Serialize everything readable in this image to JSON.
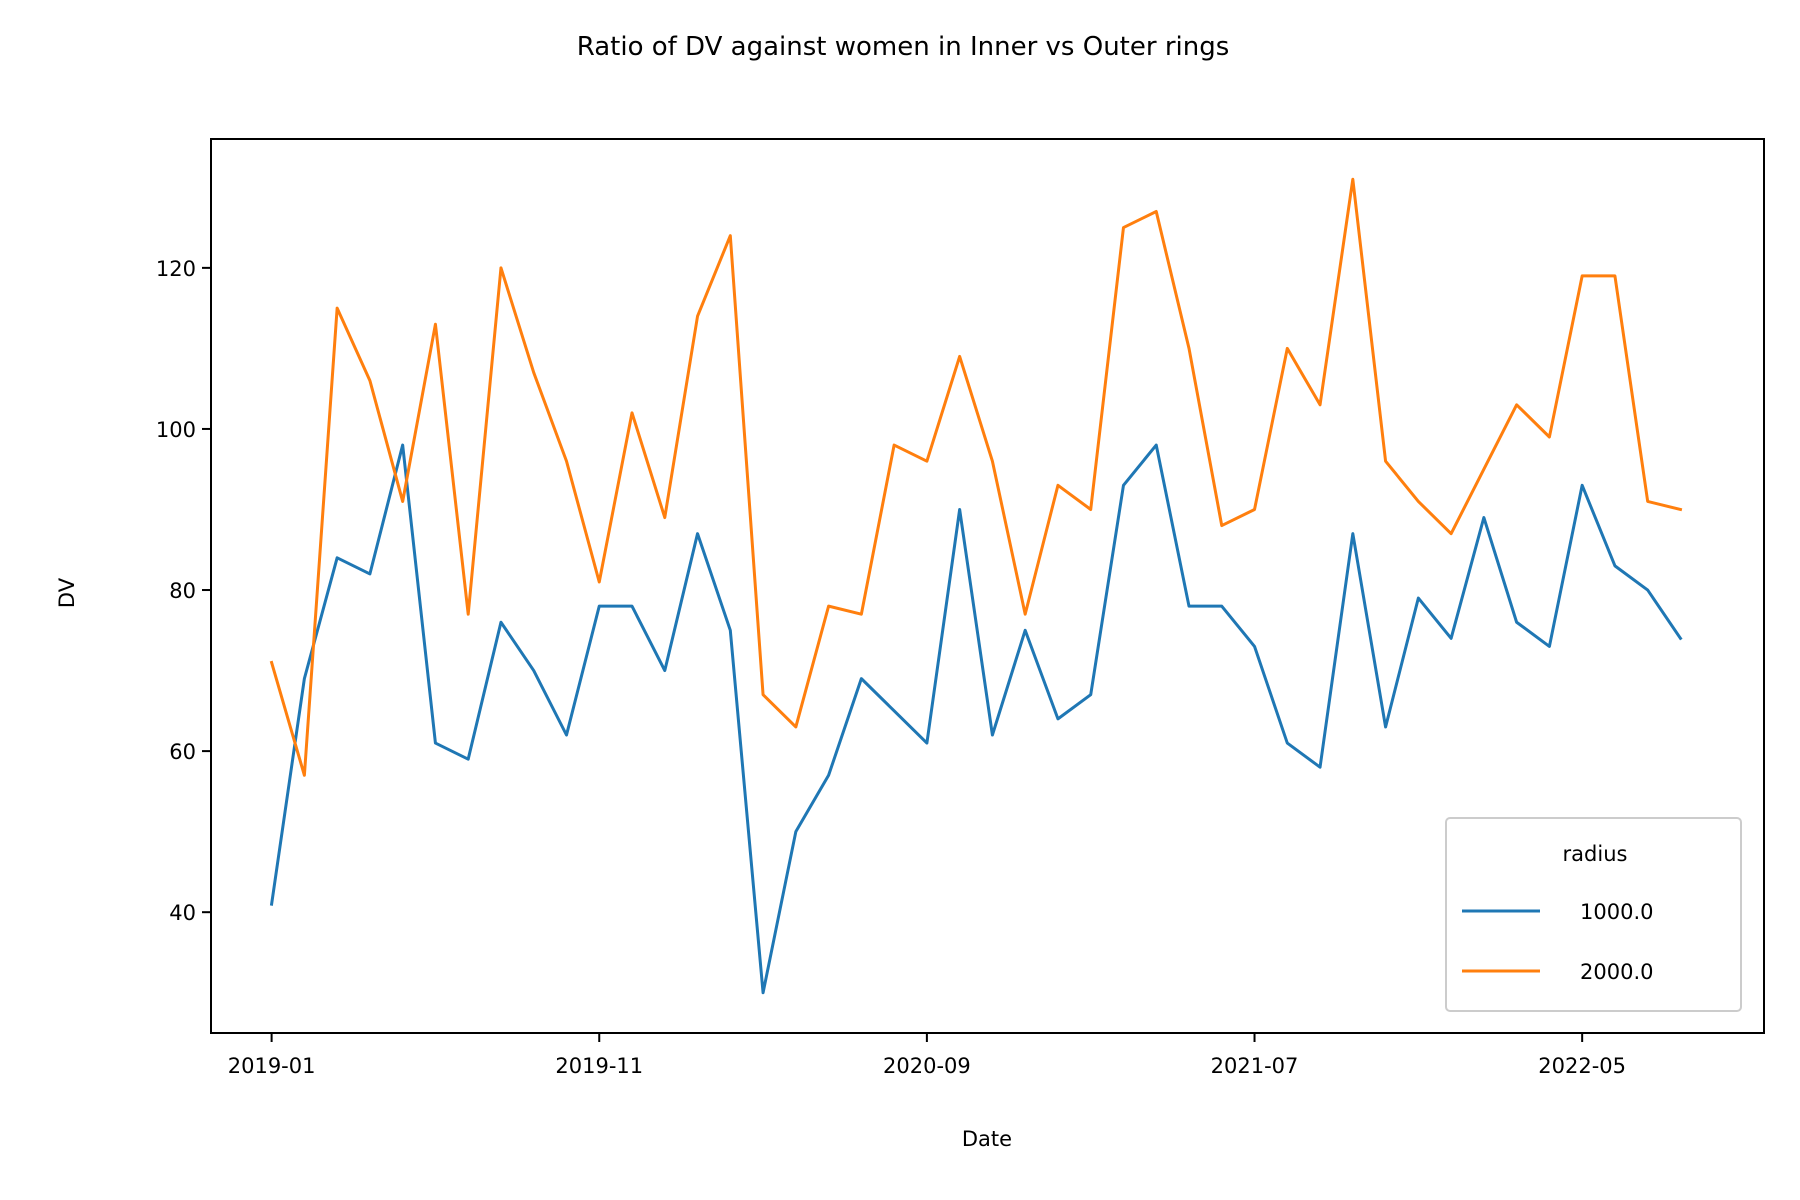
{
  "chart_data": {
    "type": "line",
    "title": "Ratio of DV against women in Inner vs Outer rings",
    "xlabel": "Date",
    "ylabel": "DV",
    "x_tick_labels": [
      "2019-01",
      "2019-11",
      "2020-09",
      "2021-07",
      "2022-05"
    ],
    "x_tick_dates": [
      "2019-01",
      "2019-11",
      "2020-09",
      "2021-07",
      "2022-05"
    ],
    "y_ticks": [
      40,
      60,
      80,
      100,
      120
    ],
    "xlim": [
      "2018-11",
      "2022-10"
    ],
    "ylim": [
      25,
      136
    ],
    "grid": false,
    "legend": {
      "title": "radius",
      "placement": "lower-right"
    },
    "x": [
      "2019-01",
      "2019-02",
      "2019-03",
      "2019-04",
      "2019-05",
      "2019-06",
      "2019-07",
      "2019-08",
      "2019-09",
      "2019-10",
      "2019-11",
      "2019-12",
      "2020-01",
      "2020-02",
      "2020-03",
      "2020-04",
      "2020-05",
      "2020-06",
      "2020-07",
      "2020-08",
      "2020-09",
      "2020-10",
      "2020-11",
      "2020-12",
      "2021-01",
      "2021-02",
      "2021-03",
      "2021-04",
      "2021-05",
      "2021-06",
      "2021-07",
      "2021-08",
      "2021-09",
      "2021-10",
      "2021-11",
      "2021-12",
      "2022-01",
      "2022-02",
      "2022-03",
      "2022-04",
      "2022-05",
      "2022-06",
      "2022-07",
      "2022-08"
    ],
    "series": [
      {
        "name": "1000.0",
        "color": "#1f77b4",
        "values": [
          41,
          69,
          84,
          82,
          98,
          61,
          59,
          76,
          70,
          62,
          78,
          78,
          70,
          87,
          75,
          30,
          50,
          57,
          69,
          65,
          61,
          90,
          62,
          75,
          64,
          67,
          93,
          98,
          78,
          78,
          73,
          61,
          58,
          87,
          63,
          79,
          74,
          89,
          76,
          73,
          93,
          83,
          80,
          74
        ]
      },
      {
        "name": "2000.0",
        "color": "#ff7f0e",
        "values": [
          71,
          57,
          115,
          106,
          91,
          113,
          77,
          120,
          107,
          96,
          81,
          102,
          89,
          114,
          124,
          67,
          63,
          78,
          77,
          98,
          96,
          109,
          96,
          77,
          93,
          90,
          125,
          127,
          110,
          88,
          90,
          110,
          103,
          131,
          96,
          91,
          87,
          95,
          103,
          99,
          119,
          119,
          91,
          90
        ]
      }
    ]
  }
}
